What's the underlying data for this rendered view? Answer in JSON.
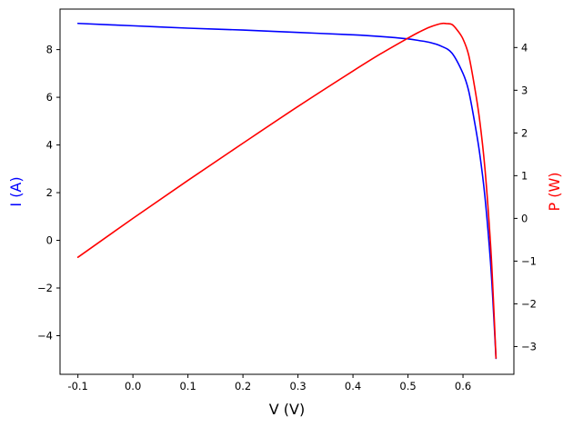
{
  "chart_data": {
    "type": "line",
    "title": "",
    "xlabel": "V (V)",
    "ylabel_left": "I (A)",
    "ylabel_right": "P (W)",
    "xlim": [
      -0.1325,
      0.6925
    ],
    "ylim_left": [
      -5.62,
      9.7
    ],
    "ylim_right": [
      -3.65,
      4.9
    ],
    "x_ticks": [
      "-0.1",
      "0.0",
      "0.1",
      "0.2",
      "0.3",
      "0.4",
      "0.5",
      "0.6"
    ],
    "y_ticks_left": [
      "−4",
      "−2",
      "0",
      "2",
      "4",
      "6",
      "8"
    ],
    "y_ticks_right": [
      "−3",
      "−2",
      "−1",
      "0",
      "1",
      "2",
      "3",
      "4"
    ],
    "grid": false,
    "colors": {
      "current": "#0000ff",
      "power": "#ff0000",
      "ylabel_left": "#0000ff",
      "ylabel_right": "#ff0000"
    },
    "series": [
      {
        "axis": "left",
        "x": [
          -0.1,
          0.0,
          0.1,
          0.2,
          0.3,
          0.4,
          0.45,
          0.5,
          0.52,
          0.54,
          0.56,
          0.58,
          0.6,
          0.61,
          0.62,
          0.63,
          0.64,
          0.65,
          0.655,
          0.66
        ],
        "y": [
          9.1,
          9.0,
          8.9,
          8.82,
          8.72,
          8.62,
          8.55,
          8.45,
          8.38,
          8.3,
          8.15,
          7.85,
          7.0,
          6.3,
          5.1,
          3.7,
          1.8,
          -0.9,
          -2.8,
          -4.95
        ]
      },
      {
        "axis": "right",
        "x": [
          -0.1,
          0.0,
          0.1,
          0.2,
          0.3,
          0.4,
          0.45,
          0.5,
          0.52,
          0.54,
          0.56,
          0.57,
          0.58,
          0.59,
          0.6,
          0.61,
          0.62,
          0.63,
          0.64,
          0.65,
          0.655,
          0.66
        ],
        "y": [
          -0.91,
          0.0,
          0.89,
          1.76,
          2.62,
          3.45,
          3.85,
          4.22,
          4.36,
          4.48,
          4.56,
          4.56,
          4.54,
          4.4,
          4.2,
          3.84,
          3.16,
          2.33,
          1.15,
          -0.59,
          -1.83,
          -3.27
        ]
      }
    ]
  }
}
